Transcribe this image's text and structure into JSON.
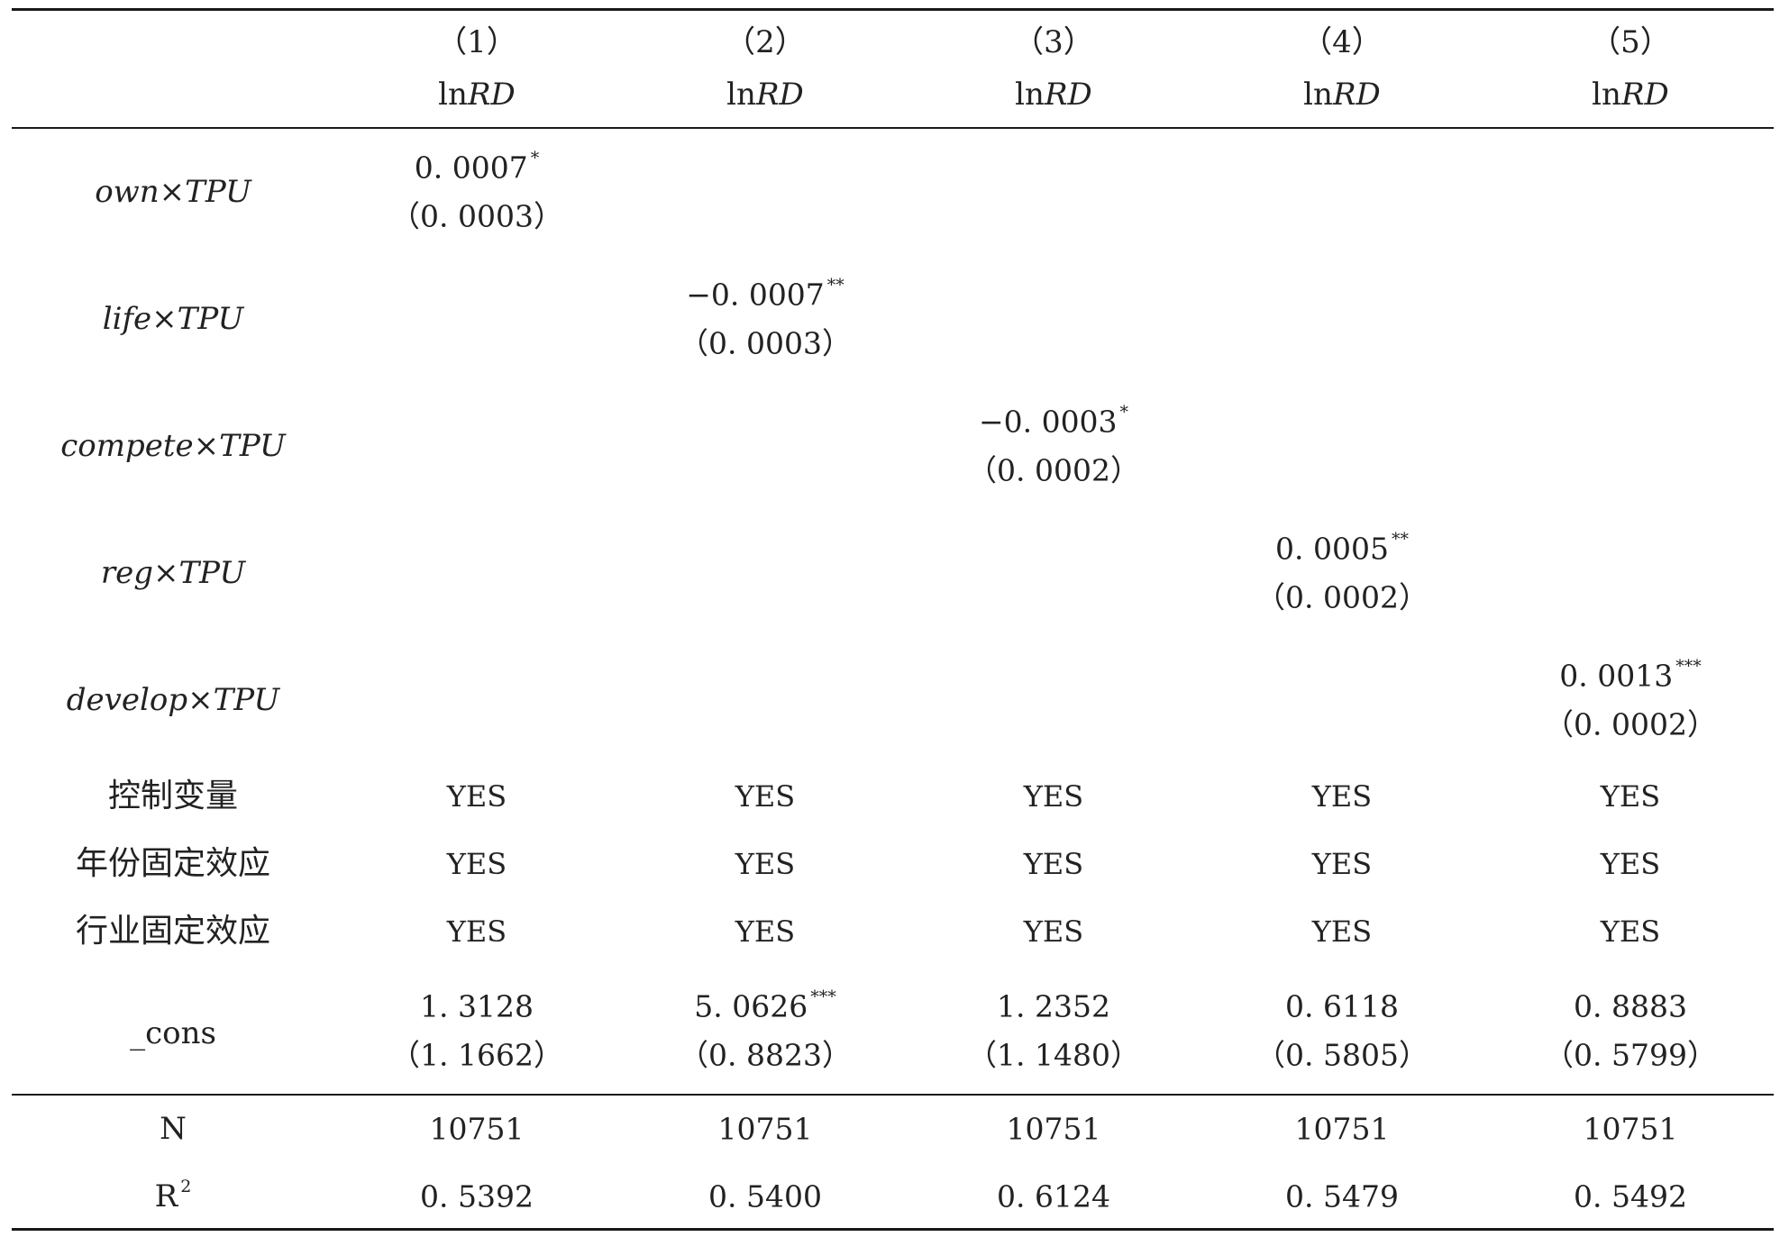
{
  "table": {
    "columns": [
      {
        "num": "（1）",
        "dep_prefix": "ln",
        "dep_var": "RD"
      },
      {
        "num": "（2）",
        "dep_prefix": "ln",
        "dep_var": "RD"
      },
      {
        "num": "（3）",
        "dep_prefix": "ln",
        "dep_var": "RD"
      },
      {
        "num": "（4）",
        "dep_prefix": "ln",
        "dep_var": "RD"
      },
      {
        "num": "（5）",
        "dep_prefix": "ln",
        "dep_var": "RD"
      }
    ],
    "interactions": [
      {
        "var": "own",
        "times": "×",
        "tpu": "TPU",
        "col": 0,
        "coef": "0. 0007",
        "stars": "*",
        "se": "（0. 0003）"
      },
      {
        "var": "life",
        "times": "×",
        "tpu": "TPU",
        "col": 1,
        "coef": "−0. 0007",
        "stars": "**",
        "se": "（0. 0003）"
      },
      {
        "var": "compete",
        "times": "×",
        "tpu": "TPU",
        "col": 2,
        "coef": "−0. 0003",
        "stars": "*",
        "se": "（0. 0002）"
      },
      {
        "var": "reg",
        "times": "×",
        "tpu": "TPU",
        "col": 3,
        "coef": "0. 0005",
        "stars": "**",
        "se": "（0. 0002）"
      },
      {
        "var": "develop",
        "times": "×",
        "tpu": "TPU",
        "col": 4,
        "coef": "0. 0013",
        "stars": "***",
        "se": "（0. 0002）"
      }
    ],
    "controls": [
      {
        "label": "控制变量",
        "values": [
          "YES",
          "YES",
          "YES",
          "YES",
          "YES"
        ]
      },
      {
        "label": "年份固定效应",
        "values": [
          "YES",
          "YES",
          "YES",
          "YES",
          "YES"
        ]
      },
      {
        "label": "行业固定效应",
        "values": [
          "YES",
          "YES",
          "YES",
          "YES",
          "YES"
        ]
      }
    ],
    "cons": {
      "label": "_cons",
      "coefs": [
        "1. 3128",
        "5. 0626",
        "1. 2352",
        "0. 6118",
        "0. 8883"
      ],
      "stars": [
        "",
        "***",
        "",
        "",
        ""
      ],
      "ses": [
        "（1. 1662）",
        "（0. 8823）",
        "（1. 1480）",
        "（0. 5805）",
        "（0. 5799）"
      ]
    },
    "n": {
      "label": "N",
      "values": [
        "10751",
        "10751",
        "10751",
        "10751",
        "10751"
      ]
    },
    "r2": {
      "label_base": "R",
      "label_sup": "2",
      "values": [
        "0. 5392",
        "0. 5400",
        "0. 6124",
        "0. 5479",
        "0. 5492"
      ]
    }
  }
}
